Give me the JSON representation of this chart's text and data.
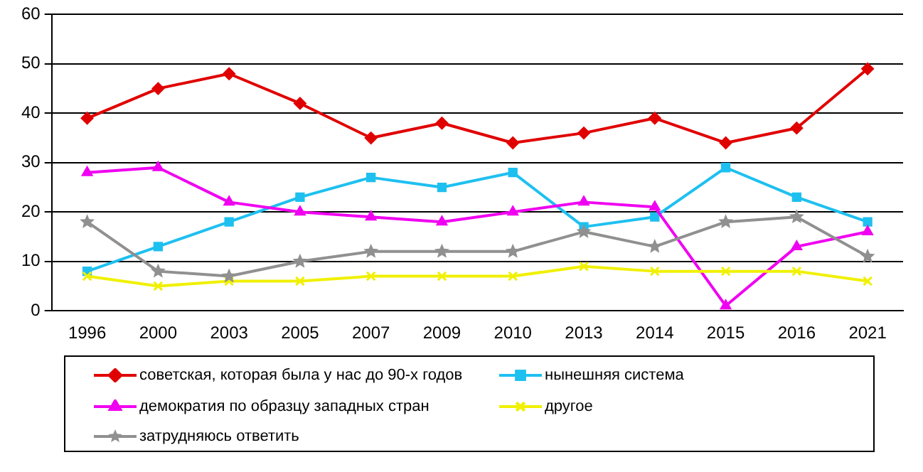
{
  "chart_data": {
    "type": "line",
    "categories": [
      "1996",
      "2000",
      "2003",
      "2005",
      "2007",
      "2009",
      "2010",
      "2013",
      "2014",
      "2015",
      "2016",
      "2021"
    ],
    "series": [
      {
        "name": "советская, которая была у нас до 90-х годов",
        "color": "#e00000",
        "marker": "diamond",
        "values": [
          39,
          45,
          48,
          42,
          35,
          38,
          34,
          36,
          39,
          34,
          37,
          49
        ]
      },
      {
        "name": "нынешняя система",
        "color": "#1ec0f0",
        "marker": "square",
        "values": [
          8,
          13,
          18,
          23,
          27,
          25,
          28,
          17,
          19,
          29,
          23,
          18
        ]
      },
      {
        "name": "демократия по образцу западных стран",
        "color": "#f000f0",
        "marker": "triangle",
        "values": [
          28,
          29,
          22,
          20,
          19,
          18,
          20,
          22,
          21,
          1,
          13,
          16
        ]
      },
      {
        "name": "другое",
        "color": "#f0f000",
        "marker": "cross",
        "values": [
          7,
          5,
          6,
          6,
          7,
          7,
          7,
          9,
          8,
          8,
          8,
          6
        ]
      },
      {
        "name": "затрудняюсь ответить",
        "color": "#909090",
        "marker": "star",
        "values": [
          18,
          8,
          7,
          10,
          12,
          12,
          12,
          16,
          13,
          18,
          19,
          11
        ]
      }
    ],
    "ylim": [
      0,
      60
    ],
    "yticks": [
      0,
      10,
      20,
      30,
      40,
      50,
      60
    ],
    "grid": "y",
    "legend": "bottom",
    "line_style": "solid"
  }
}
